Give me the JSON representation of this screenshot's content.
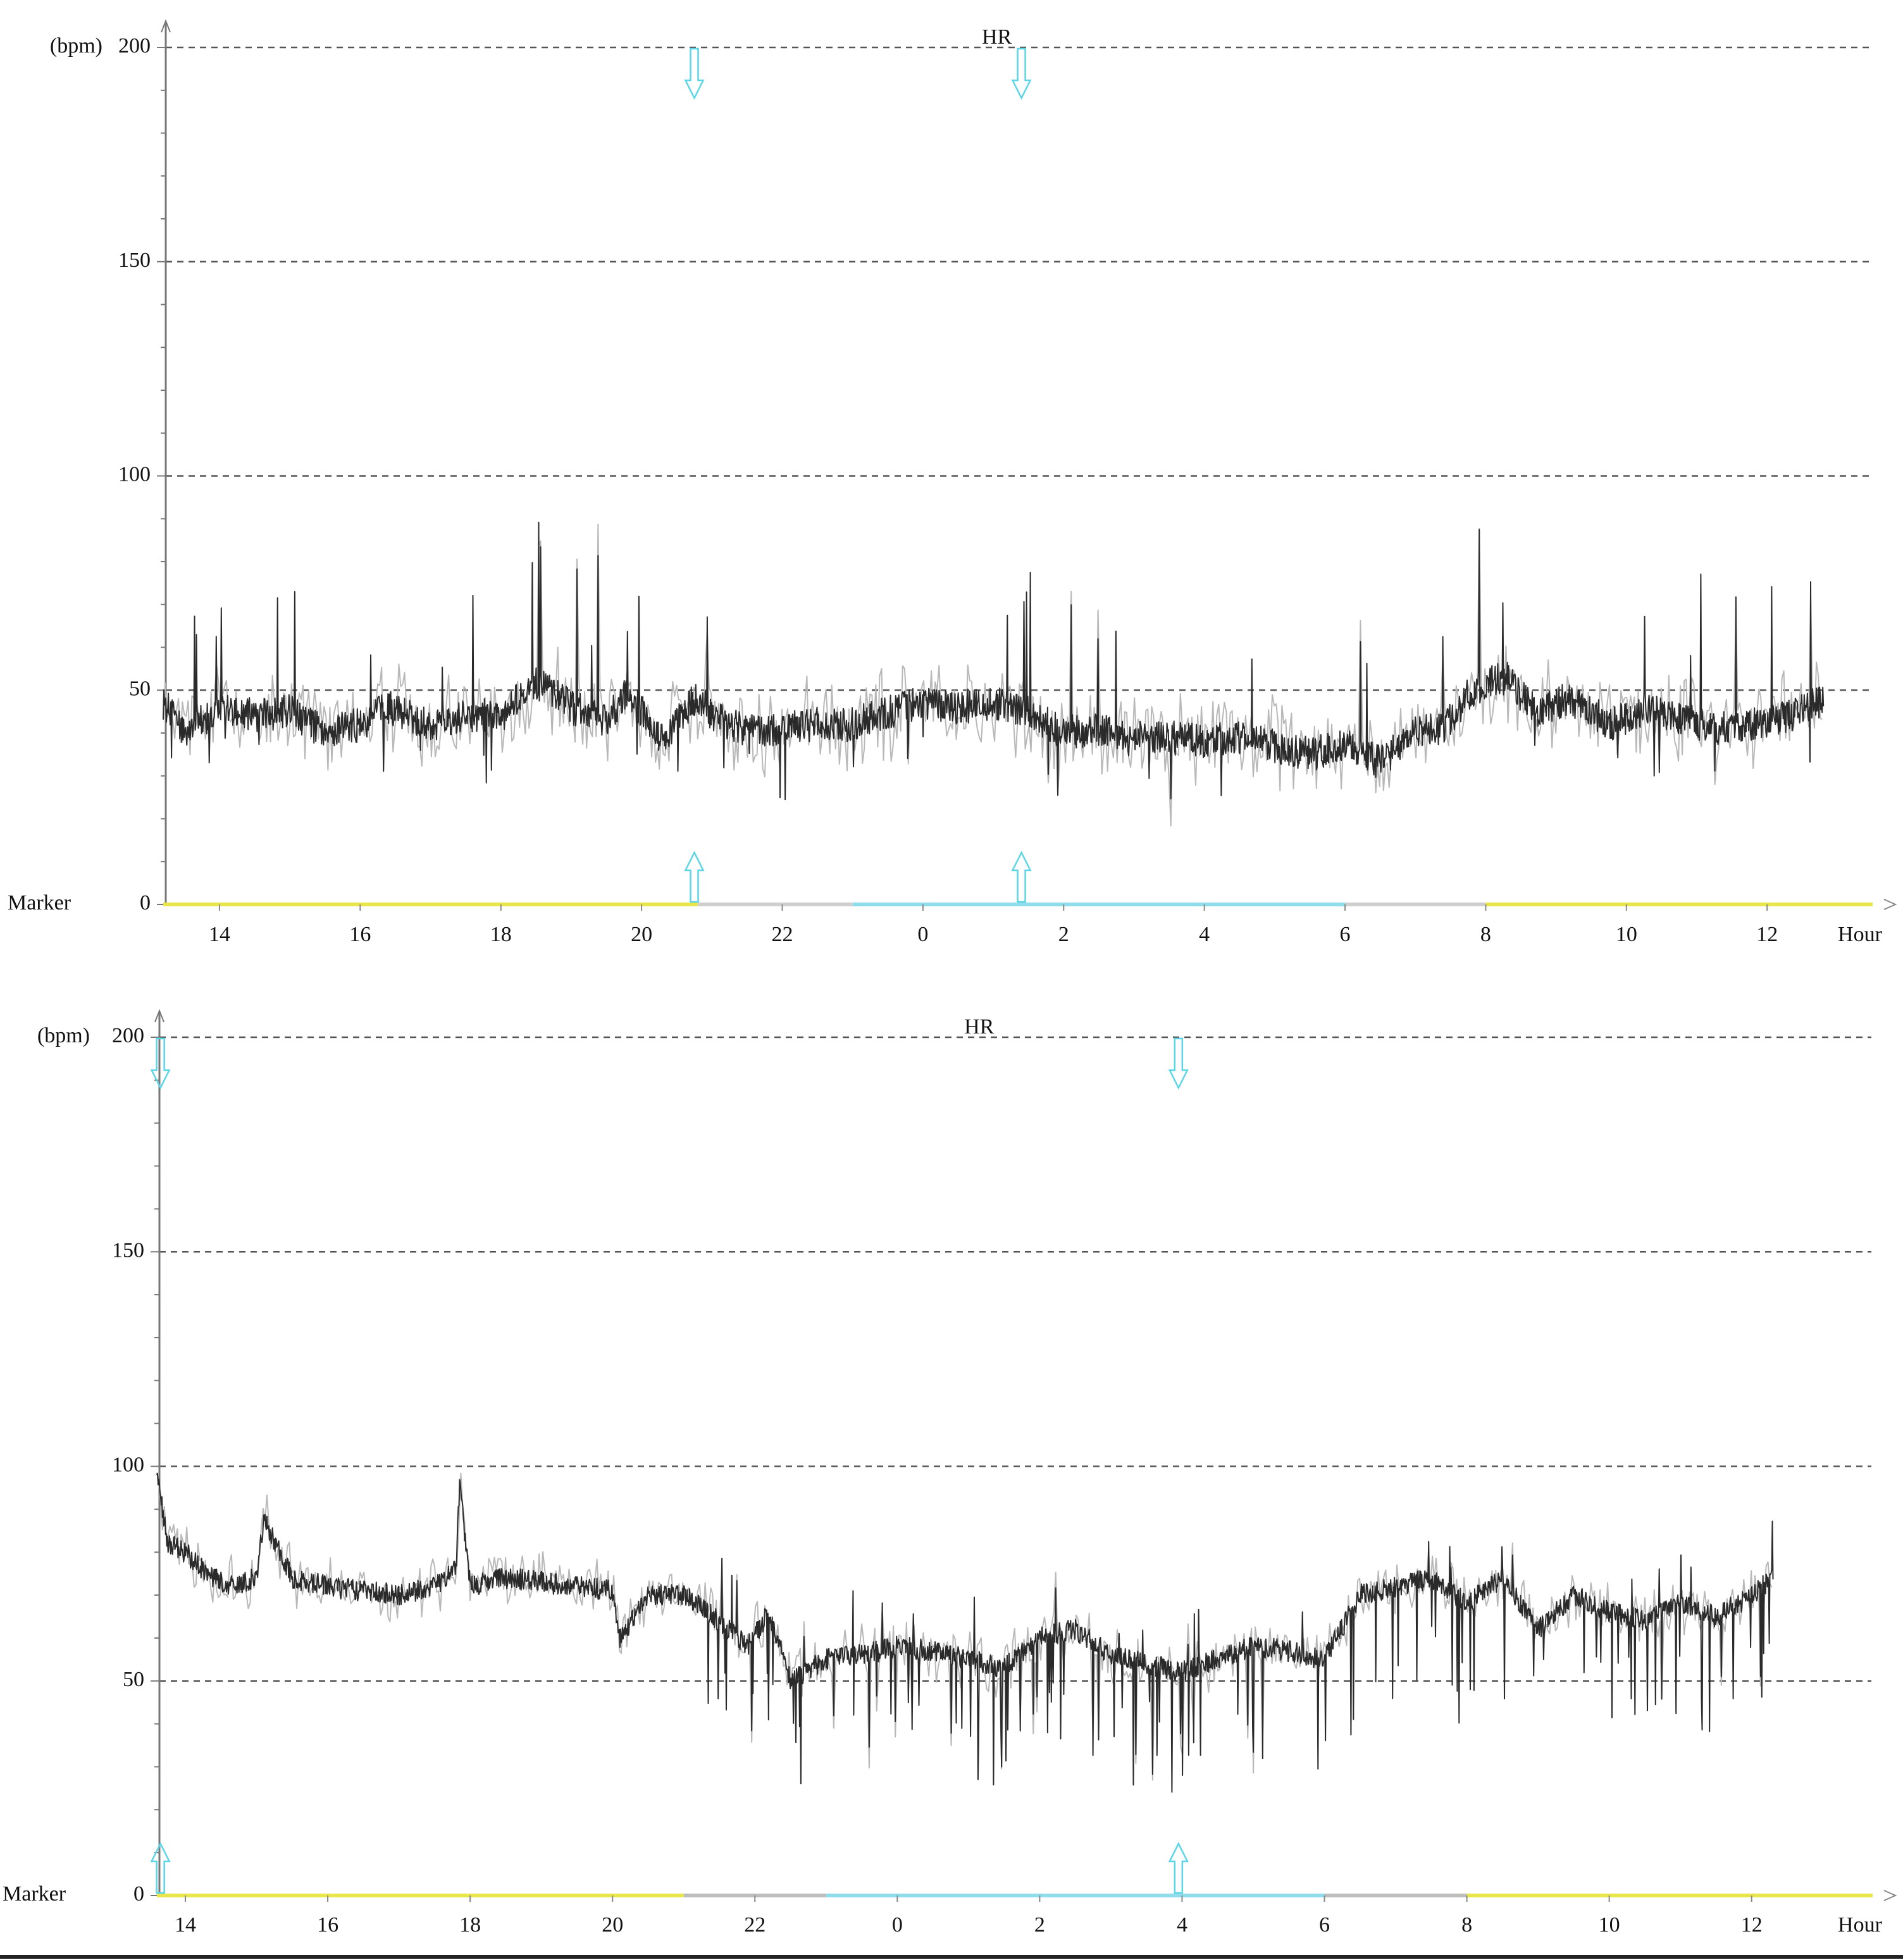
{
  "chart_data": [
    {
      "type": "line",
      "title": "HR",
      "ylabel": "(bpm)",
      "xlabel": "Hour",
      "marker_label": "Marker",
      "ylim": [
        0,
        200
      ],
      "yticks": [
        "0",
        "50",
        "100",
        "150",
        "200"
      ],
      "y_grid_values": [
        50,
        100,
        150,
        200
      ],
      "x_start_hour": 13.2,
      "x_end_hour": 37.5,
      "xticks": [
        "14",
        "16",
        "18",
        "20",
        "22",
        "0",
        "2",
        "4",
        "6",
        "8",
        "10",
        "12"
      ],
      "xtick_hours": [
        14,
        16,
        18,
        20,
        22,
        24,
        26,
        28,
        30,
        32,
        34,
        36
      ],
      "grid": "dashed horizontal",
      "line_color": "#2a2a2a",
      "event_arrow_color": "#5ad6e6",
      "event_arrows_hours": [
        20.75,
        25.4
      ],
      "marker_segments": [
        {
          "from": 13.2,
          "to": 20.8,
          "color": "#e8e64a"
        },
        {
          "from": 20.8,
          "to": 23.0,
          "color": "#cfcfcf"
        },
        {
          "from": 23.0,
          "to": 30.0,
          "color": "#8fdcea"
        },
        {
          "from": 30.0,
          "to": 32.0,
          "color": "#cfcfcf"
        },
        {
          "from": 32.0,
          "to": 37.5,
          "color": "#e8e64a"
        }
      ],
      "series": [
        {
          "x": [
            13.2,
            13.5,
            14,
            14.5,
            15,
            15.5,
            16,
            16.4,
            17,
            17.5,
            18,
            18.5,
            19,
            19.5,
            19.8,
            20.3,
            20.75,
            21.2,
            21.8,
            22.3,
            23,
            23.5,
            24,
            24.5,
            25,
            25.5,
            26,
            26.5,
            27,
            27.5,
            28,
            28.5,
            29,
            29.5,
            30,
            30.5,
            31,
            31.4,
            31.8,
            32.3,
            32.7,
            33.2,
            33.8,
            34.3,
            34.8,
            35.3,
            35.8,
            36.3,
            36.8
          ],
          "y": [
            47,
            40,
            46,
            44,
            45,
            40,
            42,
            46,
            42,
            44,
            44,
            52,
            46,
            43,
            50,
            38,
            48,
            42,
            40,
            42,
            42,
            45,
            47,
            46,
            47,
            45,
            40,
            41,
            39,
            39,
            38,
            39,
            37,
            35,
            37,
            33,
            40,
            41,
            50,
            53,
            45,
            48,
            42,
            46,
            43,
            41,
            42,
            44,
            48
          ]
        }
      ]
    },
    {
      "type": "line",
      "title": "HR",
      "ylabel": "(bpm)",
      "xlabel": "Hour",
      "marker_label": "Marker",
      "ylim": [
        0,
        200
      ],
      "yticks": [
        "0",
        "50",
        "100",
        "150",
        "200"
      ],
      "y_grid_values": [
        50,
        100,
        150,
        200
      ],
      "x_start_hour": 13.6,
      "x_end_hour": 37.7,
      "xticks": [
        "14",
        "16",
        "18",
        "20",
        "22",
        "0",
        "2",
        "4",
        "6",
        "8",
        "10",
        "12"
      ],
      "xtick_hours": [
        14,
        16,
        18,
        20,
        22,
        24,
        26,
        28,
        30,
        32,
        34,
        36
      ],
      "grid": "dashed horizontal",
      "line_color": "#2a2a2a",
      "event_arrow_color": "#5ad6e6",
      "event_arrows_hours": [
        13.65,
        27.95
      ],
      "marker_segments": [
        {
          "from": 13.6,
          "to": 21.0,
          "color": "#e8e64a"
        },
        {
          "from": 21.0,
          "to": 23.0,
          "color": "#bdbdbd"
        },
        {
          "from": 23.0,
          "to": 30.0,
          "color": "#8fdcea"
        },
        {
          "from": 30.0,
          "to": 32.0,
          "color": "#bdbdbd"
        },
        {
          "from": 32.0,
          "to": 37.7,
          "color": "#e8e64a"
        }
      ],
      "series": [
        {
          "x": [
            13.6,
            13.75,
            14,
            14.3,
            14.6,
            15,
            15.1,
            15.5,
            16,
            16.5,
            17,
            17.5,
            17.8,
            17.85,
            18,
            18.5,
            19,
            19.5,
            20,
            20.1,
            20.5,
            21,
            21.5,
            21.9,
            22.2,
            22.5,
            23,
            23.5,
            24,
            24.5,
            25,
            25.5,
            26,
            26.5,
            27,
            27.5,
            28,
            28.5,
            29,
            29.5,
            30,
            30.5,
            31,
            31.5,
            32,
            32.5,
            33,
            33.5,
            34,
            34.5,
            35,
            35.5,
            36,
            36.3
          ],
          "y": [
            98,
            82,
            80,
            75,
            72,
            74,
            88,
            74,
            72,
            71,
            70,
            72,
            76,
            96,
            72,
            74,
            73,
            72,
            71,
            60,
            70,
            70,
            64,
            58,
            66,
            50,
            55,
            56,
            58,
            57,
            55,
            53,
            60,
            62,
            56,
            54,
            52,
            55,
            58,
            57,
            55,
            70,
            72,
            74,
            68,
            74,
            62,
            70,
            66,
            64,
            68,
            65,
            70,
            74
          ]
        }
      ]
    }
  ]
}
